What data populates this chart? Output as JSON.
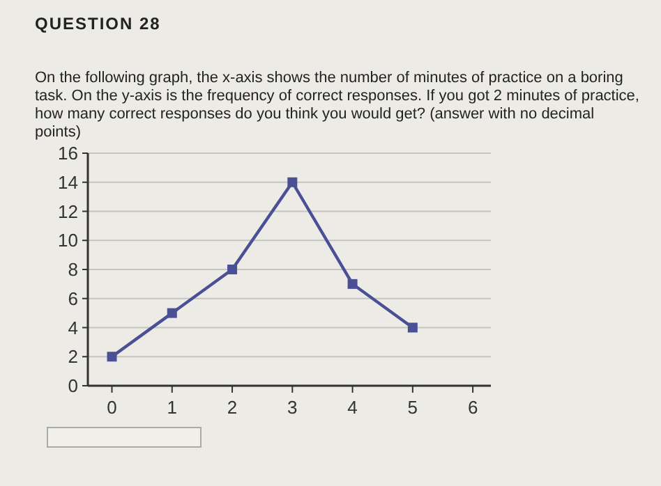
{
  "chart_data": {
    "type": "line",
    "title": "QUESTION 28",
    "subtitle": "On the following graph, the x-axis shows the number of minutes of practice on a boring task.  On the y-axis is the frequency of correct responses.  If you got 2 minutes of practice, how many correct responses do you think you would get?  (answer with no decimal points)",
    "x": [
      0,
      1,
      2,
      3,
      4,
      5
    ],
    "series": [
      {
        "color": "#4b4f96",
        "values": [
          2,
          5,
          8,
          14,
          7,
          4
        ]
      }
    ],
    "xlim": [
      -0.4,
      6.3
    ],
    "xticks": [
      0,
      1,
      2,
      3,
      4,
      5,
      6
    ],
    "ylim": [
      0,
      16
    ],
    "yticks": [
      0,
      2,
      4,
      6,
      8,
      10,
      12,
      14,
      16
    ],
    "grid": "y",
    "marker": "square",
    "line_style": "solid"
  }
}
